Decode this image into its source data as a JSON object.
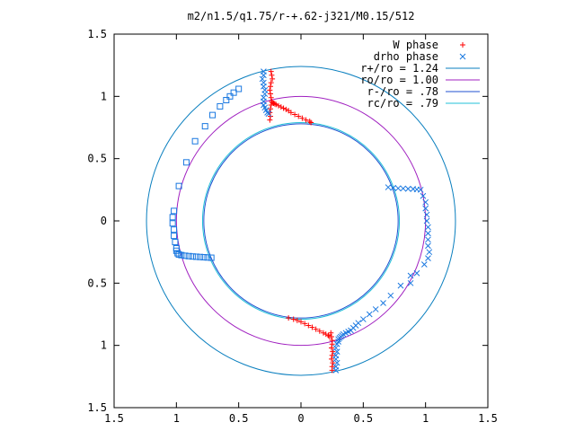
{
  "chart_data": {
    "type": "scatter",
    "title": "m2/n1.5/q1.75/r-+.62-j321/M0.15/512",
    "xlim": [
      -1.5,
      1.5
    ],
    "ylim": [
      -1.5,
      1.5
    ],
    "xticks": [
      {
        "v": -1.5,
        "label": "1.5"
      },
      {
        "v": -1,
        "label": "1"
      },
      {
        "v": -0.5,
        "label": "0.5"
      },
      {
        "v": 0,
        "label": "0"
      },
      {
        "v": 0.5,
        "label": "0.5"
      },
      {
        "v": 1,
        "label": "1"
      },
      {
        "v": 1.5,
        "label": "1.5"
      }
    ],
    "yticks": [
      {
        "v": 1.5,
        "label": "1.5"
      },
      {
        "v": 1,
        "label": "1"
      },
      {
        "v": 0.5,
        "label": "0.5"
      },
      {
        "v": 0,
        "label": "0"
      },
      {
        "v": -0.5,
        "label": "0.5"
      },
      {
        "v": -1,
        "label": "1"
      },
      {
        "v": -1.5,
        "label": "1.5"
      }
    ],
    "grid": false,
    "legend_position": "top-right",
    "circles": [
      {
        "name": "r+/ro = 1.24",
        "radius": 1.24,
        "color": "#0a7fbf"
      },
      {
        "name": "ro/ro = 1.00",
        "radius": 1.0,
        "color": "#a020c0"
      },
      {
        "name": "r-/ro = .78",
        "radius": 0.78,
        "color": "#2050d0"
      },
      {
        "name": "rc/ro = .79",
        "radius": 0.79,
        "color": "#20c0d8"
      }
    ],
    "series": [
      {
        "name": "W phase",
        "marker": "plus",
        "color": "#ff0000",
        "x": [
          -0.24,
          -0.235,
          -0.23,
          -0.24,
          -0.245,
          -0.25,
          -0.245,
          -0.24,
          -0.235,
          -0.24,
          -0.245,
          -0.25,
          -0.245,
          -0.25,
          -0.23,
          -0.22,
          -0.21,
          -0.2,
          -0.18,
          -0.16,
          -0.14,
          -0.12,
          -0.1,
          -0.08,
          -0.05,
          -0.02,
          0.01,
          0.04,
          0.07,
          0.08,
          0.25,
          0.25,
          0.255,
          0.245,
          0.25,
          0.255,
          0.245,
          0.25,
          0.25,
          0.245,
          0.24,
          0.23,
          0.22,
          0.2,
          0.18,
          0.15,
          0.12,
          0.09,
          0.06,
          0.03,
          0.0,
          -0.03,
          -0.06,
          -0.1
        ],
        "y": [
          1.2,
          1.17,
          1.14,
          1.11,
          1.08,
          1.05,
          1.02,
          0.99,
          0.96,
          0.93,
          0.9,
          0.87,
          0.84,
          0.81,
          0.95,
          0.945,
          0.94,
          0.935,
          0.925,
          0.915,
          0.905,
          0.895,
          0.885,
          0.87,
          0.855,
          0.84,
          0.825,
          0.81,
          0.8,
          0.79,
          -1.2,
          -1.17,
          -1.14,
          -1.11,
          -1.08,
          -1.05,
          -1.02,
          -0.99,
          -0.96,
          -0.93,
          -0.9,
          -0.93,
          -0.92,
          -0.91,
          -0.9,
          -0.885,
          -0.87,
          -0.855,
          -0.84,
          -0.825,
          -0.81,
          -0.8,
          -0.79,
          -0.78
        ]
      },
      {
        "name": "drho phase",
        "marker": "cross",
        "color": "#1a78e0",
        "x": [
          -0.3,
          -0.3,
          -0.31,
          -0.3,
          -0.3,
          -0.29,
          -0.29,
          -0.3,
          -0.3,
          -0.3,
          -0.29,
          -0.28,
          -0.27,
          -0.26,
          0.7,
          0.74,
          0.78,
          0.82,
          0.86,
          0.9,
          0.93,
          0.96,
          0.98,
          1.0,
          1.0,
          1.01,
          1.01,
          1.02,
          1.02,
          1.02,
          1.02,
          1.03,
          1.02,
          0.99,
          0.93,
          0.88,
          0.28,
          0.28,
          0.29,
          0.28,
          0.28,
          0.29,
          0.28,
          0.29,
          0.3,
          0.3,
          0.31,
          0.32,
          0.33,
          0.34,
          0.36,
          0.38,
          0.4,
          0.42,
          0.44,
          0.46,
          0.5,
          0.55,
          0.6,
          0.66,
          0.72,
          0.8,
          0.88
        ],
        "y": [
          1.2,
          1.17,
          1.14,
          1.11,
          1.08,
          1.05,
          1.02,
          0.99,
          0.96,
          0.93,
          0.91,
          0.89,
          0.87,
          0.86,
          0.27,
          0.265,
          0.262,
          0.26,
          0.258,
          0.256,
          0.253,
          0.25,
          0.2,
          0.15,
          0.1,
          0.05,
          0.0,
          -0.05,
          -0.1,
          -0.15,
          -0.2,
          -0.25,
          -0.3,
          -0.35,
          -0.42,
          -0.5,
          -1.2,
          -1.17,
          -1.14,
          -1.11,
          -1.08,
          -1.05,
          -1.02,
          -0.99,
          -0.97,
          -0.95,
          -0.94,
          -0.93,
          -0.92,
          -0.91,
          -0.9,
          -0.89,
          -0.88,
          -0.86,
          -0.84,
          -0.82,
          -0.79,
          -0.75,
          -0.71,
          -0.66,
          -0.6,
          -0.52,
          -0.44
        ]
      },
      {
        "name": "",
        "marker": "square",
        "color": "#1a78e0",
        "x": [
          -0.5,
          -0.54,
          -0.57,
          -0.6,
          -0.65,
          -0.71,
          -0.77,
          -0.85,
          -0.92,
          -0.98,
          -1.02,
          -1.03,
          -1.03,
          -1.02,
          -1.02,
          -1.01,
          -1.0,
          -1.0,
          -0.99,
          -0.98,
          -0.96,
          -0.93,
          -0.9,
          -0.87,
          -0.84,
          -0.81,
          -0.78,
          -0.75,
          -0.72
        ],
        "y": [
          1.06,
          1.03,
          1.0,
          0.97,
          0.92,
          0.85,
          0.76,
          0.64,
          0.47,
          0.28,
          0.08,
          0.03,
          -0.02,
          -0.07,
          -0.12,
          -0.17,
          -0.22,
          -0.24,
          -0.26,
          -0.27,
          -0.275,
          -0.28,
          -0.283,
          -0.286,
          -0.288,
          -0.29,
          -0.292,
          -0.294,
          -0.296
        ]
      }
    ]
  }
}
